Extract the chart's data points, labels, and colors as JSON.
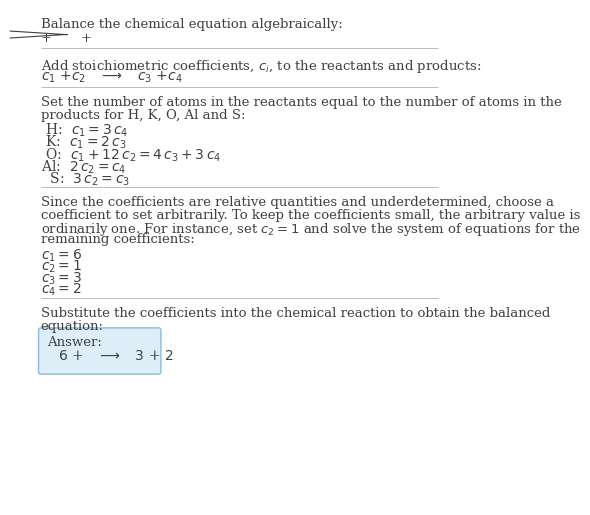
{
  "bg_color": "#ffffff",
  "text_color": "#404040",
  "line_color": "#bbbbbb",
  "answer_box_color": "#deeef8",
  "answer_box_border": "#88bbdd",
  "fs": 9.5,
  "fs_math": 10.0,
  "title1": "Balance the chemical equation algebraically:",
  "section2_title": "Add stoichiometric coefficients, $c_i$, to the reactants and products:",
  "section3_title_1": "Set the number of atoms in the reactants equal to the number of atoms in the",
  "section3_title_2": "products for H, K, O, Al and S:",
  "section4_text_1": "Since the coefficients are relative quantities and underdetermined, choose a",
  "section4_text_2": "coefficient to set arbitrarily. To keep the coefficients small, the arbitrary value is",
  "section4_text_3": "ordinarily one. For instance, set $c_2 = 1$ and solve the system of equations for the",
  "section4_text_4": "remaining coefficients:",
  "section5_text_1": "Substitute the coefficients into the chemical reaction to obtain the balanced",
  "section5_text_2": "equation:",
  "answer_label": "Answer:"
}
